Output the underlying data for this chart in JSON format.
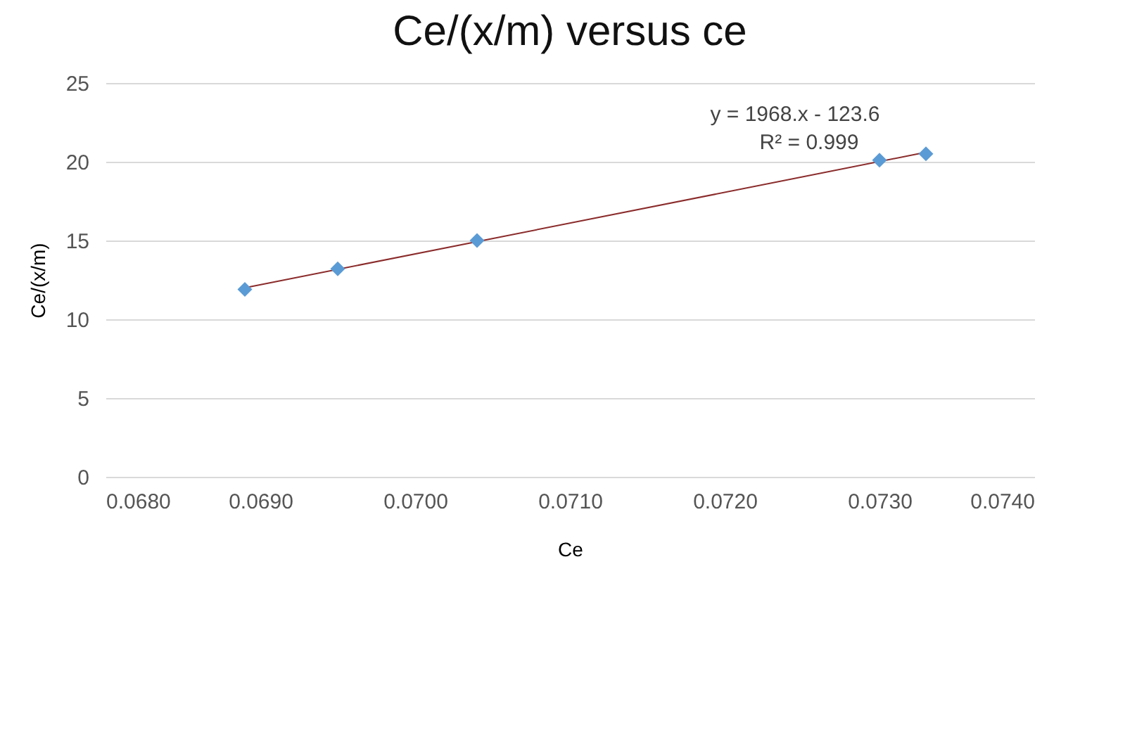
{
  "chart_data": {
    "type": "scatter",
    "title": "Ce/(x/m) versus ce",
    "xlabel": "Ce",
    "ylabel": "Ce/(x/m)",
    "series": [
      {
        "color": "#5b9bd5",
        "marker": "diamond",
        "x": [
          0.0689,
          0.0695,
          0.0704,
          0.073,
          0.0733
        ],
        "values": [
          11.9,
          13.2,
          15.0,
          20.1,
          20.5
        ]
      },
      {
        "type": "line",
        "color": "#8b2b2b",
        "x": [
          0.0689,
          0.0733
        ],
        "values": [
          12.0,
          20.6
        ]
      }
    ],
    "xlim": [
      0.068,
      0.074
    ],
    "xticks": [
      {
        "value": 0.068,
        "label": "0.0680"
      },
      {
        "value": 0.069,
        "label": "0.0690"
      },
      {
        "value": 0.07,
        "label": "0.0700"
      },
      {
        "value": 0.071,
        "label": "0.0710"
      },
      {
        "value": 0.072,
        "label": "0.0720"
      },
      {
        "value": 0.073,
        "label": "0.0730"
      },
      {
        "value": 0.074,
        "label": "0.0740"
      }
    ],
    "ylim": [
      0,
      25
    ],
    "yticks": [
      0,
      5,
      10,
      15,
      20,
      25
    ],
    "grid": "y",
    "annotations": [
      "y = 1968.x - 123.6",
      "R² = 0.999"
    ]
  }
}
